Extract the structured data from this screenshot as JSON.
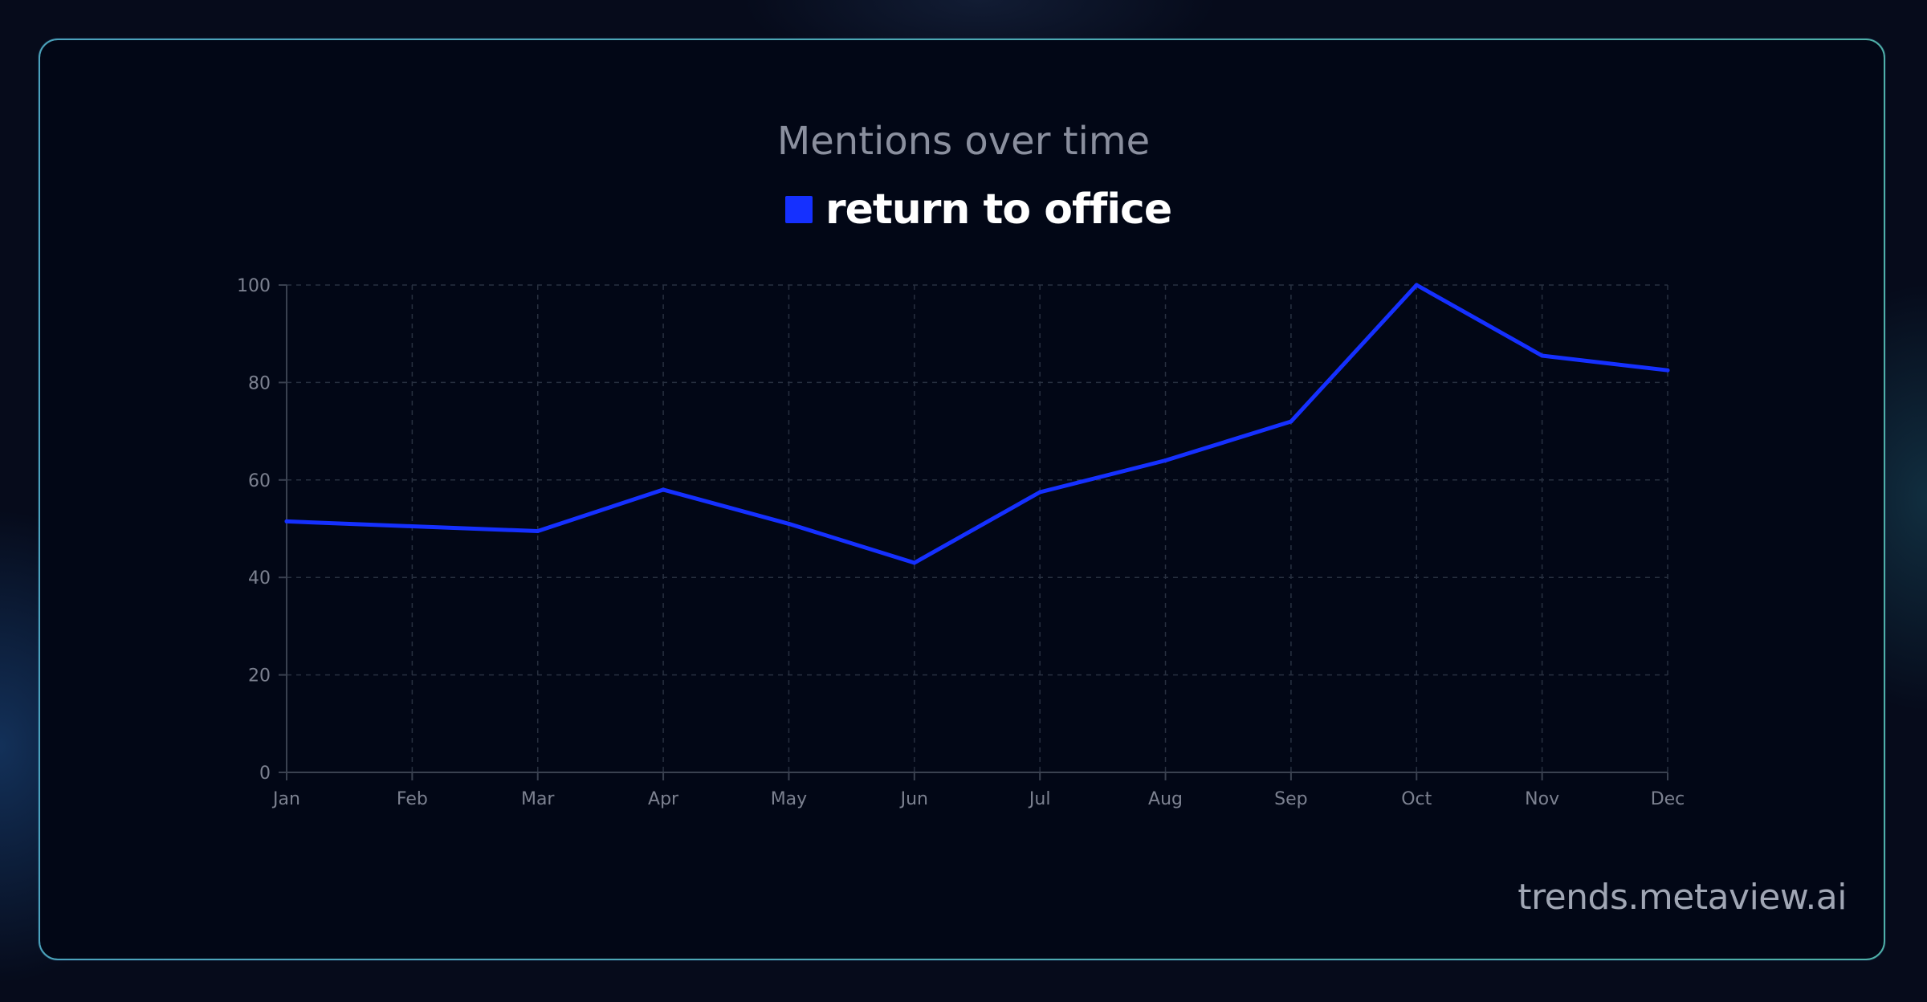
{
  "chart_data": {
    "type": "line",
    "title": "Mentions over time",
    "xlabel": "",
    "ylabel": "",
    "categories": [
      "Jan",
      "Feb",
      "Mar",
      "Apr",
      "May",
      "Jun",
      "Jul",
      "Aug",
      "Sep",
      "Oct",
      "Nov",
      "Dec"
    ],
    "series": [
      {
        "name": "return to office",
        "color": "#1530ff",
        "values": [
          51.5,
          50.5,
          49.5,
          58,
          51,
          43,
          57.5,
          64,
          72,
          100,
          85.5,
          82.5
        ]
      }
    ],
    "yticks": [
      0,
      20,
      40,
      60,
      80,
      100
    ],
    "ylim": [
      0,
      100
    ],
    "grid": true,
    "legend_position": "top-center"
  },
  "watermark": "trends.metaview.ai",
  "colors": {
    "accent": "#1530ff",
    "card_border": "#4fb0a8",
    "background": "#020716"
  }
}
